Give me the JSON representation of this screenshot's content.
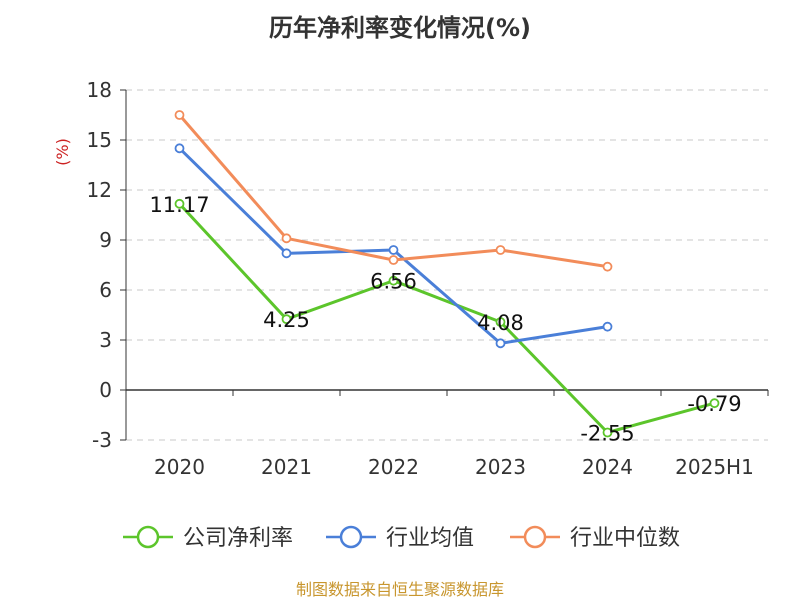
{
  "chart_data": {
    "type": "line",
    "title": "历年净利率变化情况(%)",
    "ylabel": "(%)",
    "categories": [
      "2020",
      "2021",
      "2022",
      "2023",
      "2024",
      "2025H1"
    ],
    "yticks": [
      -3,
      0,
      3,
      6,
      9,
      12,
      15,
      18
    ],
    "ylim": [
      -3,
      18
    ],
    "grid": true,
    "legend_position": "bottom",
    "series": [
      {
        "name": "公司净利率",
        "color": "#5cc52b",
        "values": [
          11.17,
          4.25,
          6.56,
          4.08,
          -2.55,
          -0.79
        ],
        "labels": [
          "11.17",
          "4.25",
          "6.56",
          "4.08",
          "-2.55",
          "-0.79"
        ]
      },
      {
        "name": "行业均值",
        "color": "#4a7fd8",
        "values": [
          14.5,
          8.2,
          8.4,
          2.8,
          3.8,
          null
        ]
      },
      {
        "name": "行业中位数",
        "color": "#f28c5a",
        "values": [
          16.5,
          9.1,
          7.8,
          8.4,
          7.4,
          null
        ]
      }
    ]
  },
  "footer": "制图数据来自恒生聚源数据库",
  "colors": {
    "grid": "#c8c8c8",
    "axis": "#333333",
    "unit": "#cc2222",
    "footer": "#c8962e"
  }
}
